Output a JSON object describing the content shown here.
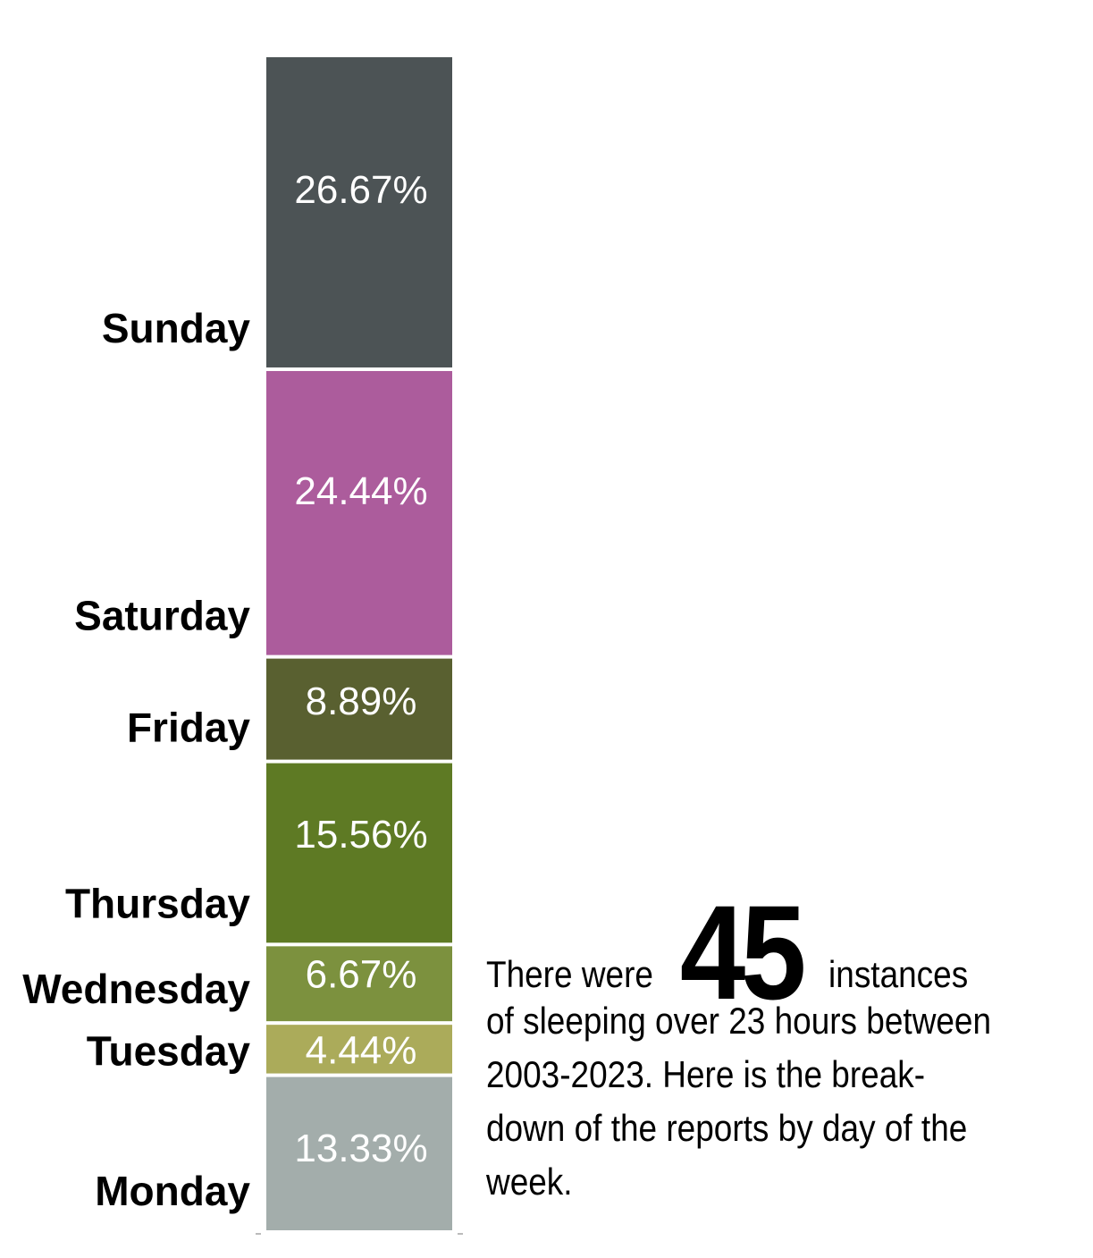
{
  "chart_data": {
    "type": "bar",
    "stacked": true,
    "orientation": "vertical",
    "order_bottom_to_top": [
      "Monday",
      "Tuesday",
      "Wednesday",
      "Thursday",
      "Friday",
      "Saturday",
      "Sunday"
    ],
    "categories": [
      "Monday",
      "Tuesday",
      "Wednesday",
      "Thursday",
      "Friday",
      "Saturday",
      "Sunday"
    ],
    "values": [
      13.33,
      4.44,
      6.67,
      15.56,
      8.89,
      24.44,
      26.67
    ],
    "value_labels": [
      "13.33%",
      "4.44%",
      "6.67%",
      "15.56%",
      "8.89%",
      "24.44%",
      "26.67%"
    ],
    "colors": [
      "#a3adab",
      "#abab5a",
      "#7c913e",
      "#5e7a24",
      "#596030",
      "#ac5c9c",
      "#4c5355"
    ],
    "unit": "%",
    "title": "",
    "xlabel": "",
    "ylabel": ""
  },
  "annotation": {
    "prefix": "There were",
    "count": "45",
    "suffix": "instances",
    "body": "of sleeping over 23 hours between 2003-2023. Here is the break-down of the reports by day of the week."
  }
}
